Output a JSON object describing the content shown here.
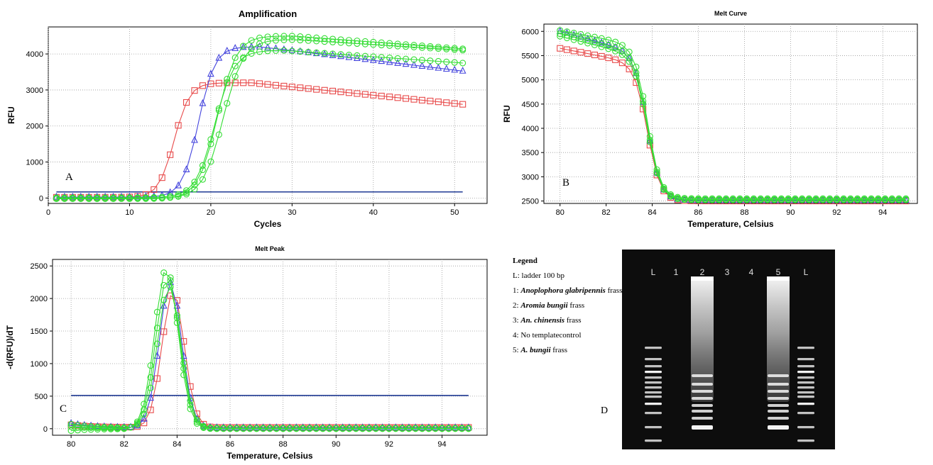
{
  "chart_data": [
    {
      "type": "line",
      "title": "Amplification",
      "xlabel": "Cycles",
      "ylabel": "RFU",
      "panel_letter": "A",
      "xlim": [
        0,
        54
      ],
      "ylim": [
        -150,
        4750
      ],
      "xticks": [
        0,
        10,
        20,
        30,
        40,
        50
      ],
      "yticks": [
        0,
        1000,
        2000,
        3000,
        4000
      ],
      "grid": true,
      "threshold": 170,
      "curve_model": {
        "x_start": 1,
        "x_end": 51,
        "series": [
          {
            "color": "#e84a4a",
            "marker": "square",
            "base": 20,
            "plateau": 3200,
            "midpoint": 15.5,
            "slope": 1.05,
            "decline_per_cycle": 23,
            "decline_from": 25
          },
          {
            "color": "#4444dd",
            "marker": "triangle",
            "base": 25,
            "plateau": 4200,
            "midpoint": 18.5,
            "slope": 1.0,
            "decline_per_cycle": 27,
            "decline_from": 26
          },
          {
            "color": "#33dd33",
            "marker": "circle",
            "base": -20,
            "plateau": 4500,
            "midpoint": 20.8,
            "slope": 0.85,
            "decline_per_cycle": 17,
            "decline_from": 30
          },
          {
            "color": "#33dd33",
            "marker": "circle",
            "base": -10,
            "plateau": 4400,
            "midpoint": 21.5,
            "slope": 0.8,
            "decline_per_cycle": 14,
            "decline_from": 30
          },
          {
            "color": "#33dd33",
            "marker": "circle",
            "base": 10,
            "plateau": 4100,
            "midpoint": 20.5,
            "slope": 0.85,
            "decline_per_cycle": 16,
            "decline_from": 29
          }
        ]
      }
    },
    {
      "type": "line",
      "title": "Melt Curve",
      "xlabel": "Temperature, Celsius",
      "ylabel": "RFU",
      "panel_letter": "B",
      "xlim": [
        79.3,
        95.5
      ],
      "ylim": [
        2450,
        6150
      ],
      "xticks": [
        80,
        82,
        84,
        86,
        88,
        90,
        92,
        94
      ],
      "yticks": [
        2500,
        3000,
        3500,
        4000,
        4500,
        5000,
        5500,
        6000
      ],
      "grid": true,
      "curve_model": {
        "x_start": 80,
        "x_end": 95,
        "step": 0.3,
        "midpoint": 83.8,
        "width": 0.28,
        "series": [
          {
            "color": "#e84a4a",
            "marker": "square",
            "top": 5650,
            "top_slope": 90,
            "bottom": 2500
          },
          {
            "color": "#4444dd",
            "marker": "triangle",
            "top": 6000,
            "top_slope": 130,
            "bottom": 2510
          },
          {
            "color": "#33dd33",
            "marker": "circle",
            "top": 6020,
            "top_slope": 90,
            "bottom": 2550
          },
          {
            "color": "#33dd33",
            "marker": "circle",
            "top": 5950,
            "top_slope": 110,
            "bottom": 2530
          },
          {
            "color": "#33dd33",
            "marker": "circle",
            "top": 5900,
            "top_slope": 120,
            "bottom": 2520
          }
        ]
      }
    },
    {
      "type": "line",
      "title": "Melt Peak",
      "xlabel": "Temperature, Celsius",
      "ylabel": "-d(RFU)/dT",
      "panel_letter": "C",
      "xlim": [
        79.3,
        95.7
      ],
      "ylim": [
        -100,
        2600
      ],
      "xticks": [
        80,
        82,
        84,
        86,
        88,
        90,
        92,
        94
      ],
      "yticks": [
        0,
        500,
        1000,
        1500,
        2000,
        2500
      ],
      "grid": true,
      "threshold": 510,
      "curve_model": {
        "x_start": 80,
        "x_end": 95,
        "step": 0.25,
        "series": [
          {
            "color": "#e84a4a",
            "marker": "square",
            "peak": 2080,
            "center": 83.85,
            "width": 0.42,
            "base": 20,
            "start": 60
          },
          {
            "color": "#4444dd",
            "marker": "triangle",
            "peak": 2230,
            "center": 83.75,
            "width": 0.42,
            "base": 15,
            "start": 80
          },
          {
            "color": "#33dd33",
            "marker": "circle",
            "peak": 2460,
            "center": 83.6,
            "width": 0.44,
            "base": 0,
            "start": -30
          },
          {
            "color": "#33dd33",
            "marker": "circle",
            "peak": 2330,
            "center": 83.65,
            "width": 0.44,
            "base": 5,
            "start": 30
          },
          {
            "color": "#33dd33",
            "marker": "circle",
            "peak": 2180,
            "center": 83.7,
            "width": 0.44,
            "base": 10,
            "start": 70
          }
        ]
      }
    }
  ],
  "legend": {
    "title": "Legend",
    "items": [
      {
        "prefix": "L: ",
        "name": "",
        "suffix": "ladder 100 bp"
      },
      {
        "prefix": "1: ",
        "name": "Anoplophora glabripennis",
        "suffix": " frass"
      },
      {
        "prefix": "2: ",
        "name": "Aromia bungii",
        "suffix": " frass"
      },
      {
        "prefix": "3: ",
        "name": "An. chinensis",
        "suffix": " frass"
      },
      {
        "prefix": "4: ",
        "name": "",
        "suffix": "No templatecontrol"
      },
      {
        "prefix": "5: ",
        "name": "A. bungii",
        "suffix": " frass"
      }
    ]
  },
  "gel": {
    "panel_letter": "D",
    "lanes": [
      "L",
      "1",
      "2",
      "3",
      "4",
      "5",
      "L"
    ]
  }
}
